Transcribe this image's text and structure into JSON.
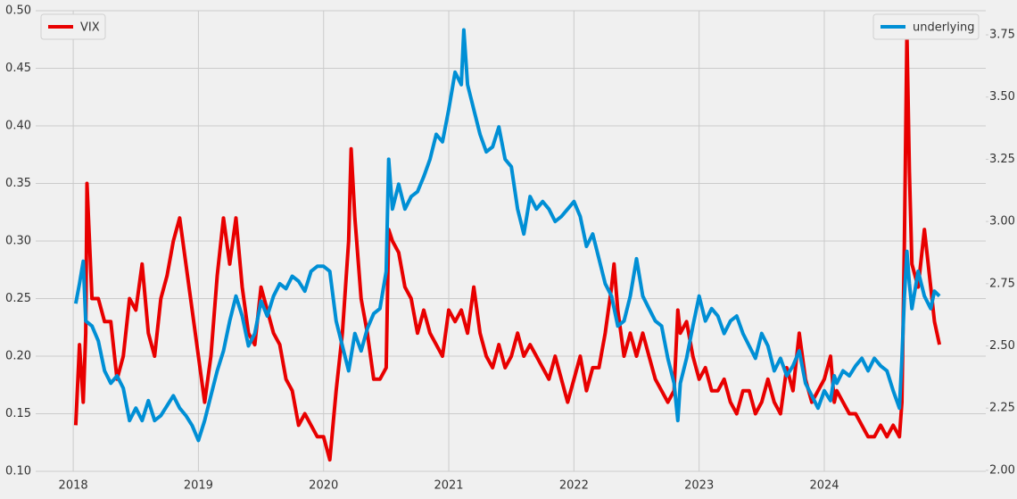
{
  "chart_data": {
    "type": "line",
    "xlim": [
      2017.7,
      2025.29
    ],
    "xticks": [
      2018,
      2019,
      2020,
      2021,
      2022,
      2023,
      2024
    ],
    "ylim": [
      0.1,
      0.5
    ],
    "yticks": [
      {
        "value": 0.1,
        "label": "0.10"
      },
      {
        "value": 0.15,
        "label": "0.15"
      },
      {
        "value": 0.2,
        "label": "0.20"
      },
      {
        "value": 0.25,
        "label": "0.25"
      },
      {
        "value": 0.3,
        "label": "0.30"
      },
      {
        "value": 0.35,
        "label": "0.35"
      },
      {
        "value": 0.4,
        "label": "0.40"
      },
      {
        "value": 0.45,
        "label": "0.45"
      },
      {
        "value": 0.5,
        "label": "0.50"
      }
    ],
    "y2lim": [
      1.996,
      3.847
    ],
    "y2ticks": [
      {
        "value": 2.0,
        "label": "2.00"
      },
      {
        "value": 2.25,
        "label": "2.25"
      },
      {
        "value": 2.5,
        "label": "2.50"
      },
      {
        "value": 2.75,
        "label": "2.75"
      },
      {
        "value": 3.0,
        "label": "3.00"
      },
      {
        "value": 3.25,
        "label": "3.25"
      },
      {
        "value": 3.5,
        "label": "3.50"
      },
      {
        "value": 3.75,
        "label": "3.75"
      }
    ],
    "grid": true,
    "series": [
      {
        "name": "VIX",
        "color": "#e80000",
        "legend": "upper left",
        "x": [
          2018.02,
          2018.05,
          2018.08,
          2018.1,
          2018.11,
          2018.15,
          2018.2,
          2018.25,
          2018.3,
          2018.35,
          2018.4,
          2018.45,
          2018.5,
          2018.55,
          2018.6,
          2018.65,
          2018.7,
          2018.75,
          2018.8,
          2018.85,
          2018.9,
          2018.95,
          2019.0,
          2019.05,
          2019.1,
          2019.15,
          2019.2,
          2019.25,
          2019.3,
          2019.35,
          2019.4,
          2019.45,
          2019.5,
          2019.55,
          2019.6,
          2019.65,
          2019.7,
          2019.75,
          2019.8,
          2019.85,
          2019.9,
          2019.95,
          2020.0,
          2020.05,
          2020.1,
          2020.15,
          2020.2,
          2020.22,
          2020.25,
          2020.3,
          2020.35,
          2020.4,
          2020.45,
          2020.5,
          2020.52,
          2020.55,
          2020.6,
          2020.65,
          2020.7,
          2020.75,
          2020.8,
          2020.85,
          2020.9,
          2020.95,
          2021.0,
          2021.05,
          2021.1,
          2021.15,
          2021.2,
          2021.25,
          2021.3,
          2021.35,
          2021.4,
          2021.45,
          2021.5,
          2021.55,
          2021.6,
          2021.65,
          2021.7,
          2021.75,
          2021.8,
          2021.85,
          2021.9,
          2021.95,
          2022.0,
          2022.05,
          2022.1,
          2022.15,
          2022.2,
          2022.25,
          2022.3,
          2022.32,
          2022.35,
          2022.4,
          2022.45,
          2022.5,
          2022.55,
          2022.6,
          2022.65,
          2022.7,
          2022.75,
          2022.8,
          2022.83,
          2022.85,
          2022.9,
          2022.95,
          2023.0,
          2023.05,
          2023.1,
          2023.15,
          2023.2,
          2023.25,
          2023.3,
          2023.35,
          2023.4,
          2023.45,
          2023.5,
          2023.55,
          2023.6,
          2023.65,
          2023.7,
          2023.75,
          2023.8,
          2023.85,
          2023.9,
          2023.95,
          2024.0,
          2024.05,
          2024.08,
          2024.1,
          2024.15,
          2024.2,
          2024.25,
          2024.3,
          2024.35,
          2024.4,
          2024.45,
          2024.5,
          2024.55,
          2024.6,
          2024.62,
          2024.64,
          2024.66,
          2024.68,
          2024.7,
          2024.75,
          2024.8,
          2024.85,
          2024.88,
          2024.92
        ],
        "values": [
          0.14,
          0.21,
          0.16,
          0.22,
          0.35,
          0.25,
          0.25,
          0.23,
          0.23,
          0.18,
          0.2,
          0.25,
          0.24,
          0.28,
          0.22,
          0.2,
          0.25,
          0.27,
          0.3,
          0.32,
          0.28,
          0.24,
          0.2,
          0.16,
          0.2,
          0.27,
          0.32,
          0.28,
          0.32,
          0.26,
          0.22,
          0.21,
          0.26,
          0.24,
          0.22,
          0.21,
          0.18,
          0.17,
          0.14,
          0.15,
          0.14,
          0.13,
          0.13,
          0.11,
          0.17,
          0.22,
          0.3,
          0.38,
          0.32,
          0.25,
          0.22,
          0.18,
          0.18,
          0.19,
          0.31,
          0.3,
          0.29,
          0.26,
          0.25,
          0.22,
          0.24,
          0.22,
          0.21,
          0.2,
          0.24,
          0.23,
          0.24,
          0.22,
          0.26,
          0.22,
          0.2,
          0.19,
          0.21,
          0.19,
          0.2,
          0.22,
          0.2,
          0.21,
          0.2,
          0.19,
          0.18,
          0.2,
          0.18,
          0.16,
          0.18,
          0.2,
          0.17,
          0.19,
          0.19,
          0.22,
          0.26,
          0.28,
          0.24,
          0.2,
          0.22,
          0.2,
          0.22,
          0.2,
          0.18,
          0.17,
          0.16,
          0.17,
          0.24,
          0.22,
          0.23,
          0.2,
          0.18,
          0.19,
          0.17,
          0.17,
          0.18,
          0.16,
          0.15,
          0.17,
          0.17,
          0.15,
          0.16,
          0.18,
          0.16,
          0.15,
          0.19,
          0.17,
          0.22,
          0.18,
          0.16,
          0.17,
          0.18,
          0.2,
          0.16,
          0.17,
          0.16,
          0.15,
          0.15,
          0.14,
          0.13,
          0.13,
          0.14,
          0.13,
          0.14,
          0.13,
          0.16,
          0.3,
          0.48,
          0.36,
          0.28,
          0.26,
          0.31,
          0.26,
          0.23,
          0.21
        ]
      },
      {
        "name": "underlying",
        "color": "#008fd5",
        "axis": "y2",
        "legend": "upper right",
        "x": [
          2018.02,
          2018.05,
          2018.08,
          2018.1,
          2018.15,
          2018.2,
          2018.25,
          2018.3,
          2018.35,
          2018.4,
          2018.45,
          2018.5,
          2018.55,
          2018.6,
          2018.65,
          2018.7,
          2018.75,
          2018.8,
          2018.85,
          2018.9,
          2018.95,
          2019.0,
          2019.05,
          2019.1,
          2019.15,
          2019.2,
          2019.25,
          2019.3,
          2019.35,
          2019.4,
          2019.45,
          2019.5,
          2019.55,
          2019.6,
          2019.65,
          2019.7,
          2019.75,
          2019.8,
          2019.85,
          2019.9,
          2019.95,
          2020.0,
          2020.05,
          2020.1,
          2020.15,
          2020.2,
          2020.25,
          2020.3,
          2020.35,
          2020.4,
          2020.45,
          2020.5,
          2020.52,
          2020.55,
          2020.6,
          2020.65,
          2020.7,
          2020.75,
          2020.8,
          2020.85,
          2020.9,
          2020.95,
          2021.0,
          2021.05,
          2021.1,
          2021.12,
          2021.15,
          2021.2,
          2021.25,
          2021.3,
          2021.35,
          2021.4,
          2021.45,
          2021.5,
          2021.55,
          2021.6,
          2021.65,
          2021.7,
          2021.75,
          2021.8,
          2021.85,
          2021.9,
          2021.95,
          2022.0,
          2022.05,
          2022.1,
          2022.15,
          2022.2,
          2022.25,
          2022.3,
          2022.35,
          2022.4,
          2022.45,
          2022.5,
          2022.55,
          2022.6,
          2022.65,
          2022.7,
          2022.75,
          2022.8,
          2022.83,
          2022.85,
          2022.9,
          2022.95,
          2023.0,
          2023.05,
          2023.1,
          2023.15,
          2023.2,
          2023.25,
          2023.3,
          2023.35,
          2023.4,
          2023.45,
          2023.5,
          2023.55,
          2023.6,
          2023.65,
          2023.7,
          2023.75,
          2023.8,
          2023.85,
          2023.9,
          2023.95,
          2024.0,
          2024.05,
          2024.08,
          2024.1,
          2024.15,
          2024.2,
          2024.25,
          2024.3,
          2024.35,
          2024.4,
          2024.45,
          2024.5,
          2024.55,
          2024.6,
          2024.62,
          2024.64,
          2024.66,
          2024.68,
          2024.7,
          2024.75,
          2024.8,
          2024.85,
          2024.88,
          2024.92
        ],
        "values": [
          2.67,
          2.75,
          2.84,
          2.6,
          2.58,
          2.52,
          2.4,
          2.35,
          2.38,
          2.33,
          2.2,
          2.25,
          2.2,
          2.28,
          2.2,
          2.22,
          2.26,
          2.3,
          2.25,
          2.22,
          2.18,
          2.12,
          2.2,
          2.3,
          2.4,
          2.48,
          2.6,
          2.7,
          2.62,
          2.5,
          2.55,
          2.68,
          2.62,
          2.7,
          2.75,
          2.73,
          2.78,
          2.76,
          2.72,
          2.8,
          2.82,
          2.82,
          2.8,
          2.6,
          2.5,
          2.4,
          2.55,
          2.48,
          2.57,
          2.63,
          2.65,
          2.8,
          3.25,
          3.05,
          3.15,
          3.05,
          3.1,
          3.12,
          3.18,
          3.25,
          3.35,
          3.32,
          3.45,
          3.6,
          3.55,
          3.77,
          3.55,
          3.45,
          3.35,
          3.28,
          3.3,
          3.38,
          3.25,
          3.22,
          3.05,
          2.95,
          3.1,
          3.05,
          3.08,
          3.05,
          3.0,
          3.02,
          3.05,
          3.08,
          3.02,
          2.9,
          2.95,
          2.85,
          2.75,
          2.7,
          2.58,
          2.6,
          2.7,
          2.85,
          2.7,
          2.65,
          2.6,
          2.58,
          2.45,
          2.35,
          2.2,
          2.35,
          2.45,
          2.58,
          2.7,
          2.6,
          2.65,
          2.62,
          2.55,
          2.6,
          2.62,
          2.55,
          2.5,
          2.45,
          2.55,
          2.5,
          2.4,
          2.45,
          2.38,
          2.42,
          2.48,
          2.35,
          2.3,
          2.25,
          2.32,
          2.28,
          2.38,
          2.35,
          2.4,
          2.38,
          2.42,
          2.45,
          2.4,
          2.45,
          2.42,
          2.4,
          2.32,
          2.25,
          2.45,
          2.7,
          2.88,
          2.75,
          2.65,
          2.8,
          2.7,
          2.65,
          2.72,
          2.7
        ]
      }
    ]
  }
}
